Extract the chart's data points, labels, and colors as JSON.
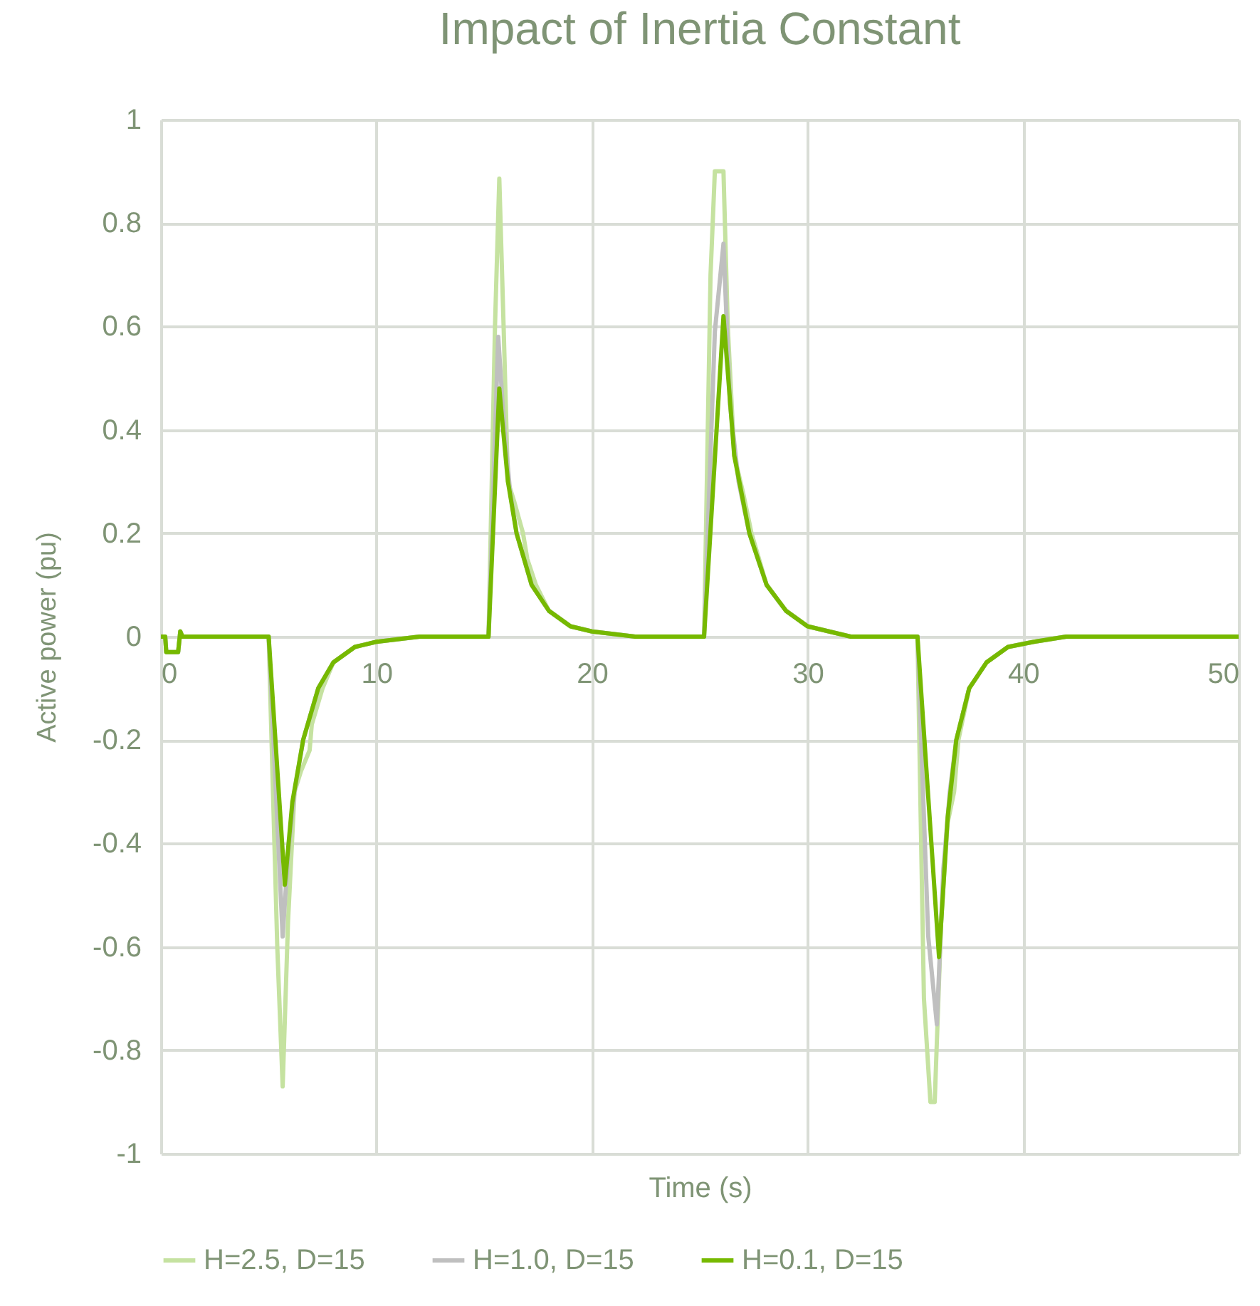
{
  "chart_data": {
    "type": "line",
    "title": "Impact of Inertia Constant",
    "xlabel": "Time (s)",
    "ylabel": "Active power (pu)",
    "xlim": [
      0,
      50
    ],
    "xticks": [
      0,
      10,
      20,
      30,
      40,
      50
    ],
    "ylim": [
      -1,
      1
    ],
    "yticks": [
      -1,
      -0.8,
      -0.6,
      -0.4,
      -0.2,
      0,
      0.2,
      0.4,
      0.6,
      0.8,
      1
    ],
    "grid": true,
    "legend": "bottom",
    "marker": "none",
    "line_style": "solid",
    "series": [
      {
        "name": "H=2.5, D=15",
        "color": "#c5e2a0",
        "x": [
          0,
          0.2,
          0.25,
          0.8,
          0.9,
          1.0,
          1.2,
          5.0,
          5.4,
          5.65,
          5.9,
          6.2,
          6.5,
          6.9,
          7.0,
          7.5,
          8,
          9,
          10,
          12,
          15,
          15.2,
          15.5,
          15.7,
          15.9,
          16.1,
          16.4,
          16.8,
          17.0,
          17.4,
          18,
          19,
          20,
          22,
          25,
          25.2,
          25.5,
          25.7,
          26.1,
          26.3,
          26.6,
          27.0,
          27.4,
          28.1,
          29,
          30,
          32,
          35,
          35.1,
          35.4,
          35.7,
          35.9,
          36.2,
          36.5,
          36.8,
          37.0,
          37.5,
          38.3,
          39.3,
          40.5,
          42,
          50
        ],
        "values": [
          0,
          0,
          -0.03,
          -0.03,
          0.01,
          0,
          0,
          0,
          -0.6,
          -0.87,
          -0.55,
          -0.3,
          -0.26,
          -0.22,
          -0.17,
          -0.1,
          -0.05,
          -0.02,
          -0.01,
          0,
          0,
          0,
          0.6,
          0.886,
          0.6,
          0.3,
          0.26,
          0.2,
          0.15,
          0.1,
          0.05,
          0.02,
          0.01,
          0,
          0,
          0,
          0.7,
          0.9,
          0.9,
          0.6,
          0.35,
          0.28,
          0.2,
          0.1,
          0.05,
          0.02,
          0,
          0,
          0,
          -0.7,
          -0.9,
          -0.9,
          -0.55,
          -0.36,
          -0.3,
          -0.2,
          -0.1,
          -0.05,
          -0.02,
          -0.01,
          0,
          0
        ]
      },
      {
        "name": "H=1.0, D=15",
        "color": "#bfbfbf",
        "x": [
          0,
          0.2,
          0.25,
          0.8,
          0.9,
          1.0,
          1.2,
          5.0,
          5.65,
          5.9,
          6.2,
          6.6,
          7.3,
          8,
          9,
          10,
          12,
          15,
          15.2,
          15.65,
          15.9,
          16.2,
          16.5,
          17.2,
          18,
          19,
          20,
          22,
          25,
          25.2,
          25.7,
          26.1,
          26.4,
          26.8,
          27.3,
          28.1,
          29,
          30,
          32,
          35,
          35.1,
          35.6,
          36.0,
          36.3,
          36.6,
          36.9,
          37.5,
          38.3,
          39.3,
          40.5,
          42,
          50
        ],
        "values": [
          0,
          0,
          -0.03,
          -0.03,
          0.01,
          0,
          0,
          0,
          -0.58,
          -0.42,
          -0.3,
          -0.2,
          -0.1,
          -0.05,
          -0.02,
          -0.01,
          0,
          0,
          0,
          0.58,
          0.42,
          0.28,
          0.2,
          0.1,
          0.05,
          0.02,
          0.01,
          0,
          0,
          0,
          0.59,
          0.76,
          0.45,
          0.3,
          0.2,
          0.1,
          0.05,
          0.02,
          0,
          0,
          0,
          -0.58,
          -0.75,
          -0.45,
          -0.3,
          -0.2,
          -0.1,
          -0.05,
          -0.02,
          -0.01,
          0,
          0
        ]
      },
      {
        "name": "H=0.1, D=15",
        "color": "#76b900",
        "x": [
          0,
          0.2,
          0.25,
          0.8,
          0.9,
          1.0,
          1.2,
          5.0,
          5.75,
          6.1,
          6.6,
          7.3,
          8,
          9,
          10,
          12,
          15,
          15.2,
          15.7,
          16.1,
          16.5,
          17.2,
          18,
          19,
          20,
          22,
          25,
          25.2,
          26.1,
          26.6,
          27.3,
          28.1,
          29,
          30,
          32,
          35,
          35.1,
          36.1,
          36.5,
          36.9,
          37.5,
          38.3,
          39.3,
          40.5,
          42,
          50
        ],
        "values": [
          0,
          0,
          -0.03,
          -0.03,
          0.01,
          0,
          0,
          0,
          -0.48,
          -0.32,
          -0.2,
          -0.1,
          -0.05,
          -0.02,
          -0.01,
          0,
          0,
          0,
          0.48,
          0.3,
          0.2,
          0.1,
          0.05,
          0.02,
          0.01,
          0,
          0,
          0,
          0.62,
          0.35,
          0.2,
          0.1,
          0.05,
          0.02,
          0,
          0,
          0,
          -0.62,
          -0.35,
          -0.2,
          -0.1,
          -0.05,
          -0.02,
          -0.01,
          0,
          0
        ]
      }
    ]
  }
}
